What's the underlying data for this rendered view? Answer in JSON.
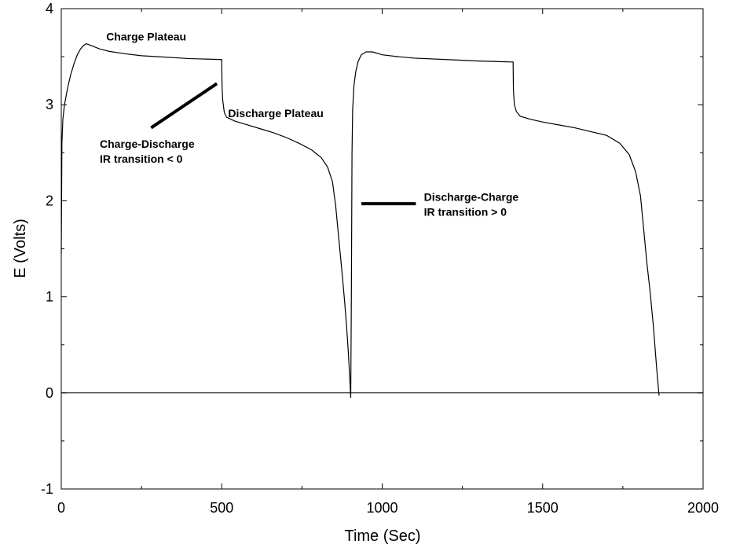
{
  "chart_data": {
    "type": "line",
    "title": "",
    "xlabel": "Time (Sec)",
    "ylabel": "E (Volts)",
    "xlim": [
      0,
      2000
    ],
    "ylim": [
      -1,
      4
    ],
    "x_ticks": [
      0,
      500,
      1000,
      1500,
      2000
    ],
    "x_minor_ticks": [
      250,
      750,
      1250,
      1750
    ],
    "y_ticks": [
      -1,
      0,
      1,
      2,
      3,
      4
    ],
    "y_minor_ticks": [
      -0.5,
      0.5,
      1.5,
      2.5,
      3.5
    ],
    "grid": false,
    "zero_line": 0,
    "series": [
      {
        "name": "",
        "color": "#000000",
        "points": [
          [
            0,
            1.45
          ],
          [
            2,
            2.6
          ],
          [
            5,
            2.85
          ],
          [
            10,
            3.0
          ],
          [
            20,
            3.18
          ],
          [
            30,
            3.32
          ],
          [
            40,
            3.43
          ],
          [
            50,
            3.52
          ],
          [
            60,
            3.58
          ],
          [
            70,
            3.62
          ],
          [
            78,
            3.635
          ],
          [
            90,
            3.62
          ],
          [
            120,
            3.58
          ],
          [
            150,
            3.555
          ],
          [
            200,
            3.53
          ],
          [
            250,
            3.51
          ],
          [
            300,
            3.5
          ],
          [
            350,
            3.49
          ],
          [
            400,
            3.48
          ],
          [
            450,
            3.475
          ],
          [
            500,
            3.47
          ],
          [
            501,
            3.2
          ],
          [
            503,
            3.05
          ],
          [
            508,
            2.92
          ],
          [
            515,
            2.87
          ],
          [
            540,
            2.83
          ],
          [
            580,
            2.79
          ],
          [
            620,
            2.75
          ],
          [
            660,
            2.71
          ],
          [
            700,
            2.66
          ],
          [
            740,
            2.6
          ],
          [
            780,
            2.53
          ],
          [
            810,
            2.45
          ],
          [
            830,
            2.35
          ],
          [
            845,
            2.2
          ],
          [
            855,
            1.95
          ],
          [
            865,
            1.6
          ],
          [
            875,
            1.25
          ],
          [
            883,
            0.95
          ],
          [
            890,
            0.65
          ],
          [
            895,
            0.4
          ],
          [
            899,
            0.15
          ],
          [
            902,
            -0.05
          ],
          [
            904,
            1.0
          ],
          [
            906,
            2.5
          ],
          [
            908,
            2.95
          ],
          [
            912,
            3.2
          ],
          [
            918,
            3.35
          ],
          [
            925,
            3.45
          ],
          [
            935,
            3.52
          ],
          [
            950,
            3.55
          ],
          [
            970,
            3.55
          ],
          [
            1000,
            3.52
          ],
          [
            1050,
            3.5
          ],
          [
            1100,
            3.485
          ],
          [
            1200,
            3.47
          ],
          [
            1300,
            3.455
          ],
          [
            1400,
            3.445
          ],
          [
            1408,
            3.445
          ],
          [
            1409,
            3.15
          ],
          [
            1412,
            3.0
          ],
          [
            1418,
            2.93
          ],
          [
            1430,
            2.88
          ],
          [
            1460,
            2.85
          ],
          [
            1500,
            2.82
          ],
          [
            1550,
            2.79
          ],
          [
            1600,
            2.76
          ],
          [
            1650,
            2.72
          ],
          [
            1700,
            2.68
          ],
          [
            1740,
            2.6
          ],
          [
            1770,
            2.48
          ],
          [
            1790,
            2.3
          ],
          [
            1805,
            2.05
          ],
          [
            1815,
            1.7
          ],
          [
            1825,
            1.35
          ],
          [
            1835,
            1.05
          ],
          [
            1845,
            0.7
          ],
          [
            1852,
            0.4
          ],
          [
            1858,
            0.15
          ],
          [
            1863,
            -0.03
          ]
        ]
      }
    ],
    "annotations": [
      {
        "id": "charge-plateau",
        "lines": [
          "Charge Plateau"
        ],
        "x": 140,
        "y": 3.67
      },
      {
        "id": "discharge-plateau",
        "lines": [
          "Discharge Plateau"
        ],
        "x": 520,
        "y": 2.87
      },
      {
        "id": "charge-discharge-ir",
        "lines": [
          "Charge-Discharge",
          "IR transition < 0"
        ],
        "x": 120,
        "y": 2.55
      },
      {
        "id": "discharge-charge-ir",
        "lines": [
          "Discharge-Charge",
          "IR transition > 0"
        ],
        "x": 1130,
        "y": 2.0
      }
    ],
    "markers": [
      {
        "id": "charge-discharge-marker",
        "x1": 280,
        "y1": 2.76,
        "x2": 485,
        "y2": 3.22
      },
      {
        "id": "discharge-charge-marker",
        "x1": 935,
        "y1": 1.97,
        "x2": 1105,
        "y2": 1.97
      }
    ]
  }
}
